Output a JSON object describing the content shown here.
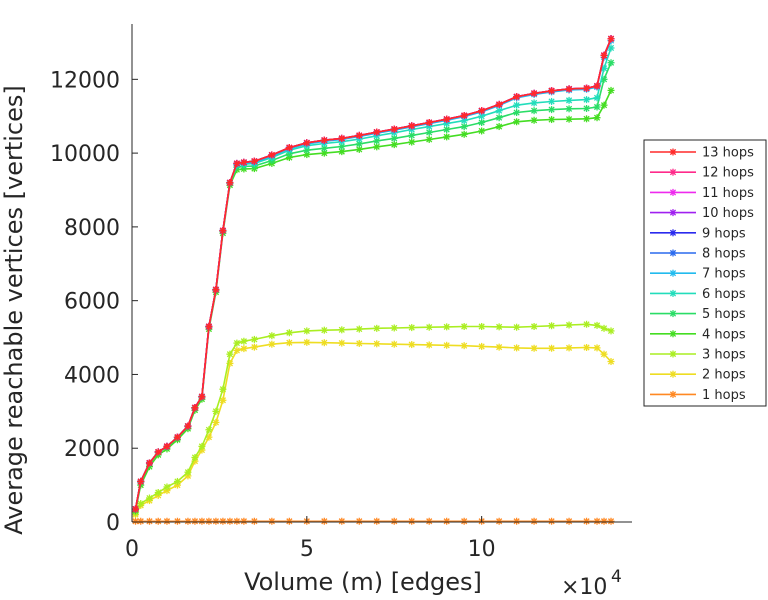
{
  "chart_data": {
    "type": "line",
    "title": "",
    "xlabel": "Volume (m) [edges]",
    "ylabel": "Average reachable vertices [vertices]",
    "x_multiplier_base": "×10",
    "x_multiplier_exp": "4",
    "xlim": [
      0,
      14.3
    ],
    "ylim": [
      0,
      13500
    ],
    "x_ticks": [
      0,
      5,
      10
    ],
    "x_tick_labels": [
      "0",
      "5",
      "10"
    ],
    "y_ticks": [
      0,
      2000,
      4000,
      6000,
      8000,
      10000,
      12000
    ],
    "y_tick_labels": [
      "0",
      "2000",
      "4000",
      "6000",
      "8000",
      "10000",
      "12000"
    ],
    "grid": false,
    "legend_position": "right",
    "x": [
      0.1,
      0.25,
      0.5,
      0.75,
      1.0,
      1.3,
      1.6,
      1.8,
      2.0,
      2.2,
      2.4,
      2.6,
      2.8,
      3.0,
      3.2,
      3.5,
      4.0,
      4.5,
      5.0,
      5.5,
      6.0,
      6.5,
      7.0,
      7.5,
      8.0,
      8.5,
      9.0,
      9.5,
      10.0,
      10.5,
      11.0,
      11.5,
      12.0,
      12.5,
      13.0,
      13.3,
      13.5,
      13.7
    ],
    "series": [
      {
        "name": "13 hops",
        "color": "#ff2a2a",
        "values": [
          350,
          1100,
          1600,
          1900,
          2050,
          2300,
          2600,
          3100,
          3400,
          5300,
          6300,
          7900,
          9200,
          9720,
          9750,
          9780,
          9950,
          10150,
          10280,
          10350,
          10400,
          10480,
          10570,
          10650,
          10740,
          10830,
          10920,
          11020,
          11150,
          11320,
          11530,
          11620,
          11690,
          11740,
          11760,
          11820,
          12650,
          13100
        ]
      },
      {
        "name": "12 hops",
        "color": "#ff2a8a",
        "values": [
          350,
          1100,
          1600,
          1900,
          2050,
          2300,
          2600,
          3100,
          3400,
          5300,
          6300,
          7900,
          9200,
          9720,
          9750,
          9780,
          9950,
          10150,
          10280,
          10350,
          10400,
          10480,
          10570,
          10650,
          10740,
          10830,
          10920,
          11020,
          11150,
          11320,
          11530,
          11620,
          11690,
          11740,
          11760,
          11820,
          12650,
          13100
        ]
      },
      {
        "name": "11 hops",
        "color": "#ee2aee",
        "values": [
          350,
          1100,
          1600,
          1900,
          2050,
          2300,
          2600,
          3100,
          3400,
          5300,
          6300,
          7900,
          9200,
          9720,
          9750,
          9780,
          9950,
          10150,
          10280,
          10350,
          10400,
          10480,
          10570,
          10650,
          10740,
          10830,
          10920,
          11020,
          11150,
          11320,
          11530,
          11620,
          11690,
          11740,
          11760,
          11820,
          12650,
          13100
        ]
      },
      {
        "name": "10 hops",
        "color": "#a020f0",
        "values": [
          350,
          1100,
          1600,
          1900,
          2050,
          2300,
          2600,
          3100,
          3400,
          5300,
          6300,
          7900,
          9200,
          9720,
          9750,
          9780,
          9950,
          10150,
          10280,
          10350,
          10400,
          10480,
          10570,
          10650,
          10740,
          10830,
          10920,
          11020,
          11150,
          11320,
          11530,
          11620,
          11690,
          11740,
          11760,
          11820,
          12650,
          13100
        ]
      },
      {
        "name": "9 hops",
        "color": "#2a2aee",
        "values": [
          350,
          1100,
          1600,
          1900,
          2050,
          2300,
          2600,
          3100,
          3400,
          5300,
          6300,
          7900,
          9200,
          9720,
          9750,
          9780,
          9950,
          10150,
          10280,
          10350,
          10400,
          10480,
          10570,
          10650,
          10740,
          10830,
          10920,
          11020,
          11150,
          11320,
          11530,
          11620,
          11690,
          11740,
          11760,
          11820,
          12650,
          13100
        ]
      },
      {
        "name": "8 hops",
        "color": "#2a6aee",
        "values": [
          350,
          1100,
          1600,
          1900,
          2050,
          2300,
          2600,
          3100,
          3400,
          5300,
          6300,
          7900,
          9200,
          9720,
          9750,
          9780,
          9950,
          10150,
          10280,
          10350,
          10400,
          10480,
          10570,
          10650,
          10740,
          10830,
          10920,
          11020,
          11150,
          11320,
          11530,
          11620,
          11690,
          11740,
          11760,
          11820,
          12650,
          13100
        ]
      },
      {
        "name": "7 hops",
        "color": "#22bbee",
        "values": [
          350,
          1100,
          1600,
          1900,
          2050,
          2300,
          2600,
          3100,
          3400,
          5300,
          6300,
          7900,
          9200,
          9700,
          9730,
          9750,
          9920,
          10120,
          10250,
          10320,
          10370,
          10450,
          10540,
          10620,
          10710,
          10800,
          10890,
          10990,
          11120,
          11290,
          11500,
          11590,
          11660,
          11710,
          11730,
          11790,
          12600,
          13050
        ]
      },
      {
        "name": "6 hops",
        "color": "#22ddbb",
        "values": [
          350,
          1100,
          1600,
          1900,
          2050,
          2300,
          2600,
          3100,
          3400,
          5300,
          6300,
          7900,
          9200,
          9680,
          9700,
          9720,
          9880,
          10080,
          10200,
          10260,
          10310,
          10380,
          10470,
          10550,
          10640,
          10720,
          10800,
          10880,
          11000,
          11150,
          11300,
          11360,
          11400,
          11430,
          11450,
          11500,
          12300,
          12850
        ]
      },
      {
        "name": "5 hops",
        "color": "#2add66",
        "values": [
          350,
          1080,
          1580,
          1880,
          2030,
          2280,
          2580,
          3080,
          3380,
          5280,
          6280,
          7880,
          9180,
          9620,
          9640,
          9650,
          9800,
          9980,
          10080,
          10130,
          10180,
          10250,
          10330,
          10400,
          10480,
          10560,
          10640,
          10720,
          10830,
          10960,
          11100,
          11150,
          11180,
          11200,
          11210,
          11250,
          12000,
          12450
        ]
      },
      {
        "name": "4 hops",
        "color": "#44dd22",
        "values": [
          300,
          1000,
          1500,
          1820,
          1980,
          2230,
          2530,
          3030,
          3330,
          5230,
          6230,
          7830,
          9130,
          9550,
          9570,
          9580,
          9720,
          9880,
          9960,
          10000,
          10040,
          10100,
          10170,
          10230,
          10300,
          10370,
          10440,
          10510,
          10600,
          10720,
          10850,
          10890,
          10910,
          10920,
          10930,
          10960,
          11300,
          11700
        ]
      },
      {
        "name": "3 hops",
        "color": "#aaee22",
        "values": [
          250,
          500,
          650,
          800,
          950,
          1100,
          1350,
          1750,
          2050,
          2500,
          3000,
          3600,
          4550,
          4850,
          4900,
          4950,
          5050,
          5130,
          5180,
          5200,
          5210,
          5230,
          5250,
          5260,
          5270,
          5280,
          5290,
          5300,
          5300,
          5290,
          5280,
          5300,
          5320,
          5340,
          5360,
          5330,
          5250,
          5180
        ]
      },
      {
        "name": "2 hops",
        "color": "#eedd22",
        "values": [
          200,
          450,
          580,
          720,
          850,
          1000,
          1250,
          1650,
          1950,
          2300,
          2700,
          3300,
          4300,
          4650,
          4700,
          4740,
          4820,
          4860,
          4870,
          4860,
          4850,
          4840,
          4830,
          4820,
          4810,
          4800,
          4790,
          4780,
          4760,
          4740,
          4720,
          4710,
          4710,
          4720,
          4730,
          4720,
          4550,
          4350
        ]
      },
      {
        "name": "1 hops",
        "color": "#ff8822",
        "values": [
          20,
          20,
          20,
          20,
          20,
          20,
          20,
          20,
          20,
          20,
          20,
          20,
          20,
          20,
          20,
          20,
          20,
          20,
          20,
          20,
          20,
          20,
          20,
          20,
          20,
          20,
          20,
          20,
          20,
          20,
          20,
          20,
          20,
          20,
          20,
          20,
          20,
          20
        ]
      }
    ]
  }
}
